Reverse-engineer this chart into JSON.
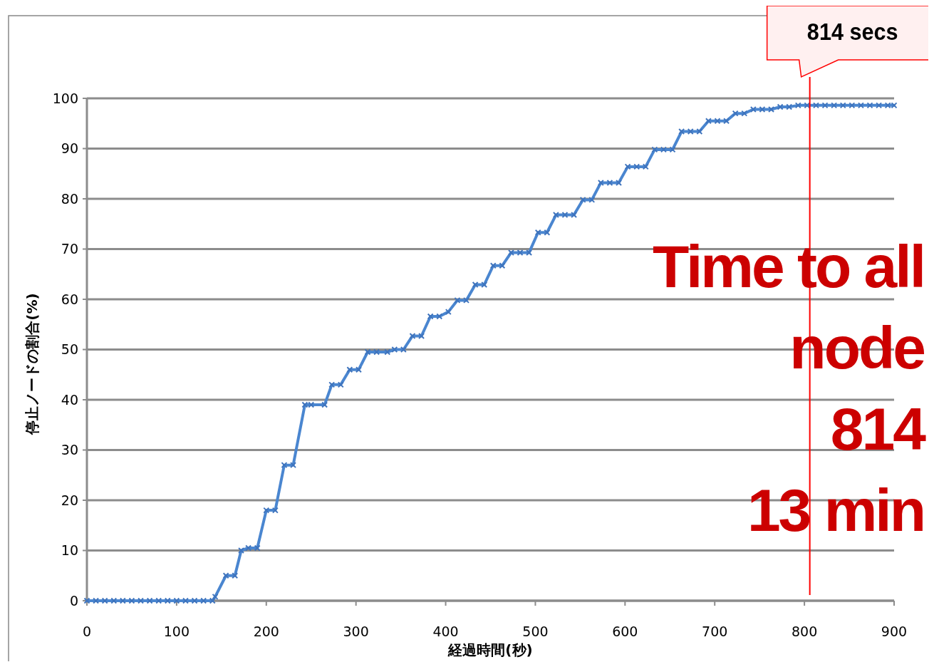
{
  "chart_data": {
    "type": "line",
    "xlabel": "経過時間(秒)",
    "ylabel": "停止ノードの割合(%)",
    "xlim": [
      0,
      900
    ],
    "xticks": [
      0,
      100,
      200,
      300,
      400,
      500,
      600,
      700,
      800,
      900
    ],
    "ylim": [
      0,
      100
    ],
    "yticks": [
      0,
      10,
      20,
      30,
      40,
      50,
      60,
      70,
      80,
      90,
      100
    ],
    "grid": "y",
    "marker": "cross",
    "line_style": "solid",
    "series": [
      {
        "color": "#4a86d0",
        "x": [
          0,
          10,
          20,
          30,
          40,
          50,
          60,
          70,
          80,
          90,
          100,
          110,
          120,
          130,
          140,
          143,
          155,
          165,
          172,
          180,
          190,
          200,
          210,
          220,
          230,
          243,
          250,
          265,
          273,
          283,
          293,
          303,
          313,
          323,
          335,
          343,
          353,
          363,
          373,
          383,
          393,
          403,
          413,
          423,
          433,
          443,
          453,
          463,
          473,
          483,
          493,
          503,
          513,
          523,
          533,
          543,
          553,
          563,
          573,
          583,
          593,
          603,
          613,
          623,
          633,
          643,
          653,
          663,
          673,
          683,
          693,
          703,
          713,
          723,
          733,
          743,
          753,
          763,
          773,
          783,
          793,
          803,
          813,
          823,
          833,
          843,
          853,
          863,
          873,
          883,
          893,
          900
        ],
        "values": [
          0,
          0,
          0,
          0,
          0,
          0,
          0,
          0,
          0,
          0,
          0,
          0,
          0,
          0,
          0,
          0.8,
          5,
          5,
          10,
          10.5,
          10.5,
          18,
          18,
          27,
          27,
          39,
          39,
          39,
          43,
          43,
          46,
          46,
          49.5,
          49.5,
          49.5,
          50,
          50,
          52.7,
          52.7,
          56.6,
          56.6,
          57.5,
          59.8,
          59.8,
          62.9,
          62.9,
          66.7,
          66.7,
          69.3,
          69.3,
          69.3,
          73.3,
          73.3,
          76.8,
          76.8,
          76.8,
          79.8,
          79.8,
          83.2,
          83.2,
          83.2,
          86.4,
          86.4,
          86.4,
          89.8,
          89.8,
          89.8,
          93.4,
          93.4,
          93.4,
          95.5,
          95.5,
          95.5,
          97,
          97,
          97.8,
          97.8,
          97.8,
          98.3,
          98.3,
          98.6,
          98.6,
          98.6,
          98.6,
          98.6,
          98.6,
          98.6,
          98.6,
          98.6,
          98.6,
          98.6,
          98.6
        ]
      }
    ],
    "ref_lines": [
      {
        "axis": "x",
        "value": 806,
        "label": "814 secs",
        "color": "#ff0000"
      }
    ],
    "annotations": [
      "Time to all\nnode\n814\n13 min"
    ]
  }
}
